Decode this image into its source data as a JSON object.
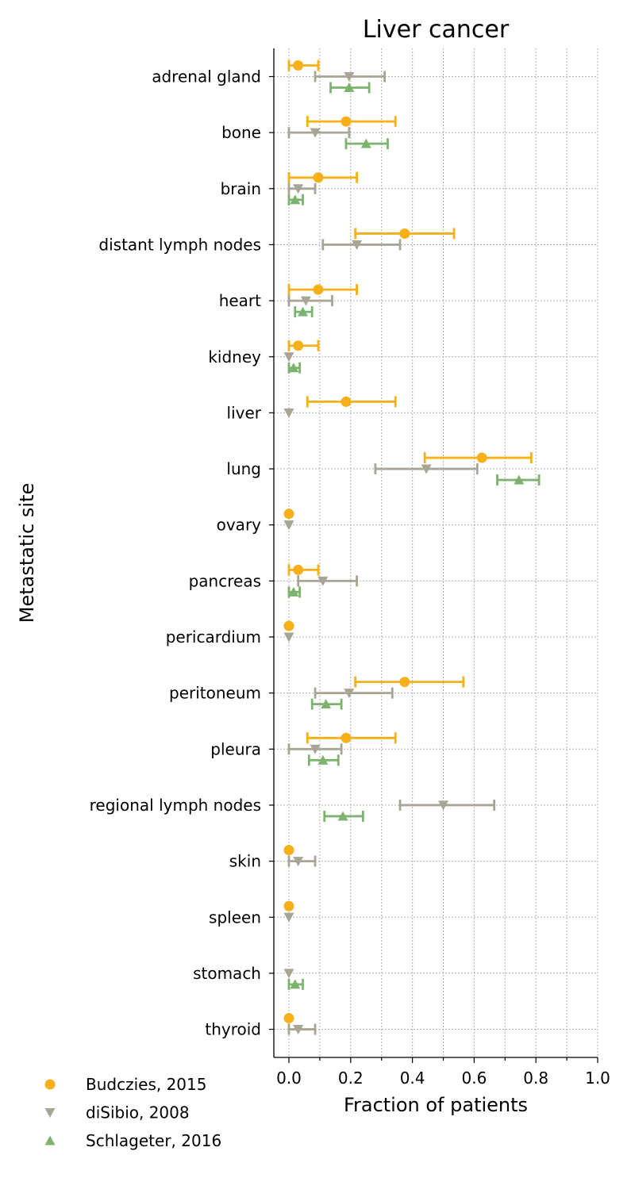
{
  "chart_data": {
    "type": "scatter",
    "title": "Liver cancer",
    "xlabel": "Fraction of patients",
    "ylabel": "Metastatic site",
    "xlim": [
      -0.05,
      1.0
    ],
    "xticks": [
      "0.0",
      "0.2",
      "0.4",
      "0.6",
      "0.8",
      "1.0"
    ],
    "grid": true,
    "legend_position": "bottom-left",
    "categories": [
      "adrenal gland",
      "bone",
      "brain",
      "distant lymph nodes",
      "heart",
      "kidney",
      "liver",
      "lung",
      "ovary",
      "pancreas",
      "pericardium",
      "peritoneum",
      "pleura",
      "regional lymph nodes",
      "skin",
      "spleen",
      "stomach",
      "thyroid"
    ],
    "series": [
      {
        "name": "Budczies, 2015",
        "marker": "circle",
        "color": "#f7b01a",
        "points": [
          {
            "category": "adrenal gland",
            "value": 0.03,
            "low": 0.0,
            "high": 0.095
          },
          {
            "category": "bone",
            "value": 0.185,
            "low": 0.06,
            "high": 0.345
          },
          {
            "category": "brain",
            "value": 0.095,
            "low": 0.0,
            "high": 0.22
          },
          {
            "category": "distant lymph nodes",
            "value": 0.375,
            "low": 0.215,
            "high": 0.535
          },
          {
            "category": "heart",
            "value": 0.095,
            "low": 0.0,
            "high": 0.22
          },
          {
            "category": "kidney",
            "value": 0.03,
            "low": 0.0,
            "high": 0.095
          },
          {
            "category": "liver",
            "value": 0.185,
            "low": 0.06,
            "high": 0.345
          },
          {
            "category": "lung",
            "value": 0.625,
            "low": 0.44,
            "high": 0.785
          },
          {
            "category": "ovary",
            "value": 0.0,
            "low": null,
            "high": null
          },
          {
            "category": "pancreas",
            "value": 0.03,
            "low": 0.0,
            "high": 0.095
          },
          {
            "category": "pericardium",
            "value": 0.0,
            "low": null,
            "high": null
          },
          {
            "category": "peritoneum",
            "value": 0.375,
            "low": 0.215,
            "high": 0.565
          },
          {
            "category": "pleura",
            "value": 0.185,
            "low": 0.06,
            "high": 0.345
          },
          {
            "category": "skin",
            "value": 0.0,
            "low": null,
            "high": null
          },
          {
            "category": "spleen",
            "value": 0.0,
            "low": null,
            "high": null
          },
          {
            "category": "thyroid",
            "value": 0.0,
            "low": null,
            "high": null
          }
        ]
      },
      {
        "name": "diSibio, 2008",
        "marker": "triangle-down",
        "color": "#a8a595",
        "points": [
          {
            "category": "adrenal gland",
            "value": 0.195,
            "low": 0.085,
            "high": 0.31
          },
          {
            "category": "bone",
            "value": 0.085,
            "low": 0.0,
            "high": 0.195
          },
          {
            "category": "brain",
            "value": 0.03,
            "low": 0.0,
            "high": 0.085
          },
          {
            "category": "distant lymph nodes",
            "value": 0.22,
            "low": 0.11,
            "high": 0.36
          },
          {
            "category": "heart",
            "value": 0.055,
            "low": 0.0,
            "high": 0.14
          },
          {
            "category": "kidney",
            "value": 0.0,
            "low": null,
            "high": null
          },
          {
            "category": "liver",
            "value": 0.0,
            "low": null,
            "high": null
          },
          {
            "category": "lung",
            "value": 0.445,
            "low": 0.28,
            "high": 0.61
          },
          {
            "category": "ovary",
            "value": 0.0,
            "low": null,
            "high": null
          },
          {
            "category": "pancreas",
            "value": 0.11,
            "low": 0.03,
            "high": 0.22
          },
          {
            "category": "pericardium",
            "value": 0.0,
            "low": null,
            "high": null
          },
          {
            "category": "peritoneum",
            "value": 0.195,
            "low": 0.085,
            "high": 0.335
          },
          {
            "category": "pleura",
            "value": 0.085,
            "low": 0.0,
            "high": 0.17
          },
          {
            "category": "regional lymph nodes",
            "value": 0.5,
            "low": 0.36,
            "high": 0.665
          },
          {
            "category": "skin",
            "value": 0.03,
            "low": 0.0,
            "high": 0.085
          },
          {
            "category": "spleen",
            "value": 0.0,
            "low": null,
            "high": null
          },
          {
            "category": "stomach",
            "value": 0.0,
            "low": null,
            "high": null
          },
          {
            "category": "thyroid",
            "value": 0.03,
            "low": 0.0,
            "high": 0.085
          }
        ]
      },
      {
        "name": "Schlageter, 2016",
        "marker": "triangle-up",
        "color": "#7db36f",
        "points": [
          {
            "category": "adrenal gland",
            "value": 0.195,
            "low": 0.135,
            "high": 0.26
          },
          {
            "category": "bone",
            "value": 0.25,
            "low": 0.185,
            "high": 0.32
          },
          {
            "category": "brain",
            "value": 0.02,
            "low": 0.0,
            "high": 0.045
          },
          {
            "category": "heart",
            "value": 0.045,
            "low": 0.02,
            "high": 0.075
          },
          {
            "category": "kidney",
            "value": 0.015,
            "low": 0.0,
            "high": 0.035
          },
          {
            "category": "lung",
            "value": 0.745,
            "low": 0.675,
            "high": 0.81
          },
          {
            "category": "pancreas",
            "value": 0.015,
            "low": 0.0,
            "high": 0.035
          },
          {
            "category": "peritoneum",
            "value": 0.12,
            "low": 0.075,
            "high": 0.17
          },
          {
            "category": "pleura",
            "value": 0.11,
            "low": 0.065,
            "high": 0.16
          },
          {
            "category": "regional lymph nodes",
            "value": 0.175,
            "low": 0.115,
            "high": 0.24
          },
          {
            "category": "stomach",
            "value": 0.02,
            "low": 0.0,
            "high": 0.045
          }
        ]
      }
    ]
  }
}
